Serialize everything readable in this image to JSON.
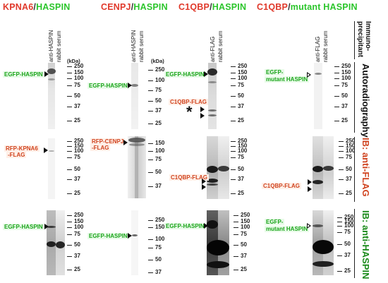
{
  "columns": [
    {
      "a": "KPNA6",
      "b": "HASPIN"
    },
    {
      "a": "CENPJ",
      "b": "HASPIN"
    },
    {
      "a": "C1QBP",
      "b": "HASPIN"
    },
    {
      "a": "C1QBP",
      "b": "mutant HASPIN"
    }
  ],
  "slash": "/",
  "lanes": {
    "anti_haspin": "anti-HASPIN",
    "anti_flag": "anti-FLAG",
    "rabbit_serum": "rabbit serum"
  },
  "kda": "(kDa)",
  "markers": {
    "set_a": [
      "250",
      "150",
      "100",
      "75",
      "50",
      "37",
      "25"
    ],
    "set_b": [
      "250",
      "150",
      "100",
      "75",
      "50",
      "37"
    ]
  },
  "labels": {
    "egfp_haspin": "EGFP-HASPIN",
    "egfp_mutant_1": "EGFP-",
    "egfp_mutant_2": "mutant HASPIN",
    "c1qbp_flag": "C1QBP-FLAG",
    "rfp_kpna6_1": "RFP-KPNA6",
    "rfp_kpna6_2": "-FLAG",
    "rfp_cenpj_1": "RFP-CENPJ",
    "rfp_cenpj_2": "-FLAG",
    "asterisk": "*"
  },
  "side": {
    "immuno_1": "Immuno-",
    "immuno_2": "precipitant",
    "autoradiography": "Autoradiography",
    "ib_flag_prefix": "IB: ",
    "ib_flag_suffix": "anti-FLAG",
    "ib_haspin_prefix": "IB: ",
    "ib_haspin_suffix": "anti-HASPIN"
  },
  "colors": {
    "red": "#e0392b",
    "green": "#2bc52b",
    "dark_green": "#1a8a1a",
    "orange": "#d04420"
  }
}
